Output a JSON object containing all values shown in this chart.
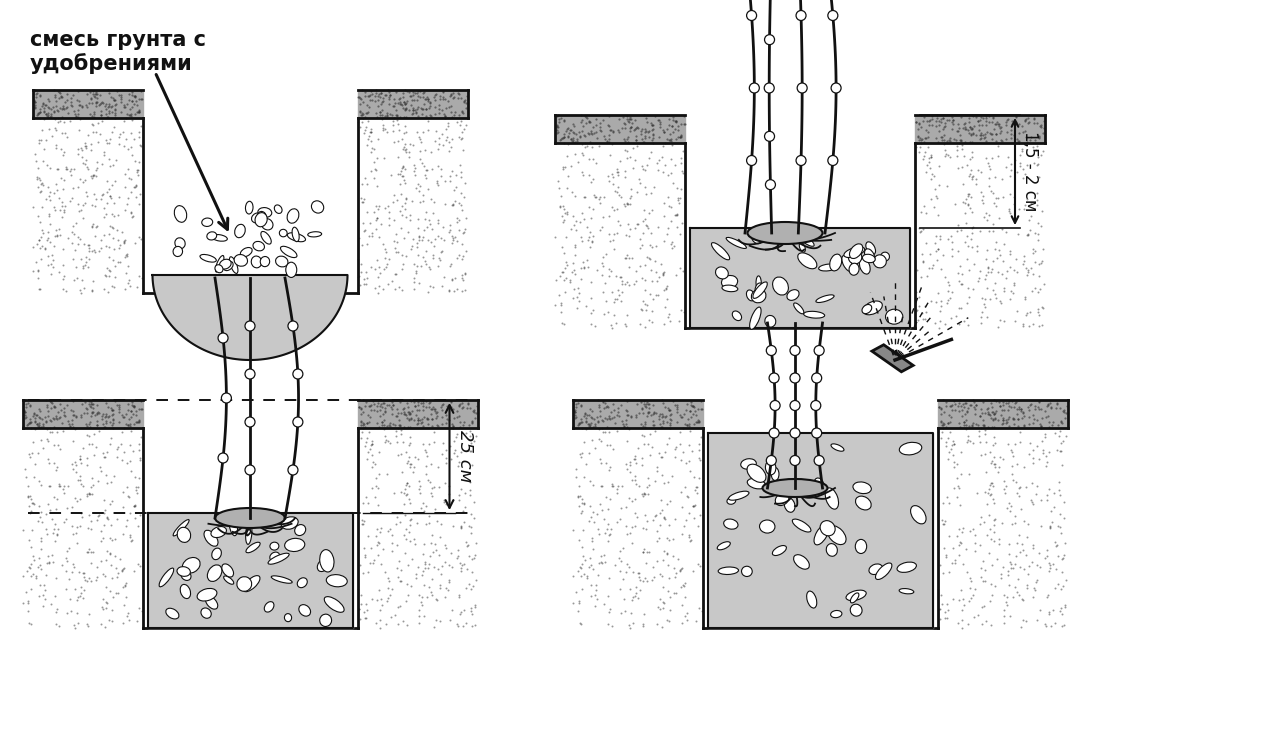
{
  "bg_color": "#ffffff",
  "line_color": "#111111",
  "wall_fill": "#aaaaaa",
  "gravel_fill": "#bbbbbb",
  "label_tl": "смесь грунта с\nудобрениями",
  "label_tr": "1,5 - 2 см",
  "label_bl": "25 см",
  "fig_w": 12.64,
  "fig_h": 7.31,
  "dpi": 100
}
